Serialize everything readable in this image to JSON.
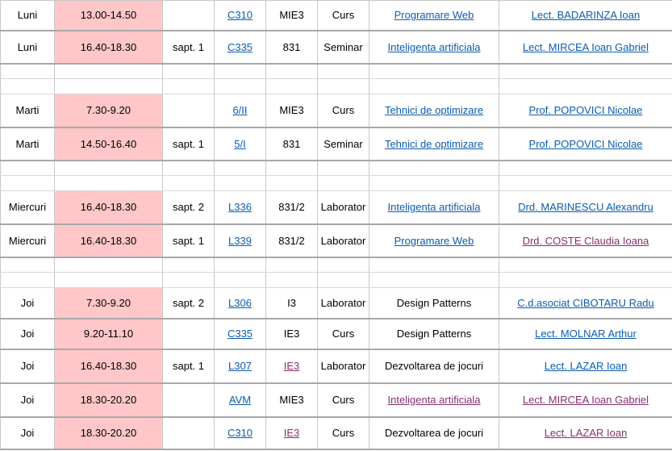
{
  "colors": {
    "time_cell_bg": "#ffc7c7",
    "link": "#0b5cad",
    "visited_link": "#86306e",
    "grid": "#c8c8c8"
  },
  "rows": [
    {
      "day": "Luni",
      "time": "13.00-14.50",
      "week": "",
      "room": "C310",
      "group": "MIE3",
      "type": "Curs",
      "subject": "Programare Web",
      "teacher": "Lect. BADARINZA Ioan"
    },
    {
      "day": "Luni",
      "time": "16.40-18.30",
      "week": "sapt. 1",
      "room": "C335",
      "group": "831",
      "type": "Seminar",
      "subject": "Inteligenta artificiala",
      "teacher": "Lect. MIRCEA Ioan Gabriel"
    },
    {
      "day": "Marti",
      "time": "7.30-9.20",
      "week": "",
      "room": "6/II",
      "group": "MIE3",
      "type": "Curs",
      "subject": "Tehnici de optimizare",
      "teacher": "Prof. POPOVICI Nicolae"
    },
    {
      "day": "Marti",
      "time": "14.50-16.40",
      "week": "sapt. 1",
      "room": "5/I",
      "group": "831",
      "type": "Seminar",
      "subject": "Tehnici de optimizare",
      "teacher": "Prof. POPOVICI Nicolae"
    },
    {
      "day": "Miercuri",
      "time": "16.40-18.30",
      "week": "sapt. 2",
      "room": "L336",
      "group": "831/2",
      "type": "Laborator",
      "subject": "Inteligenta artificiala",
      "teacher": "Drd. MARINESCU Alexandru"
    },
    {
      "day": "Miercuri",
      "time": "16.40-18.30",
      "week": "sapt. 1",
      "room": "L339",
      "group": "831/2",
      "type": "Laborator",
      "subject": "Programare Web",
      "teacher": "Drd. COSTE Claudia Ioana"
    },
    {
      "day": "Joi",
      "time": "7.30-9.20",
      "week": "sapt. 2",
      "room": "L306",
      "group": "I3",
      "type": "Laborator",
      "subject": "Design Patterns",
      "teacher": "C.d.asociat CIBOTARU Radu"
    },
    {
      "day": "Joi",
      "time": "9.20-11.10",
      "week": "",
      "room": "C335",
      "group": "IE3",
      "type": "Curs",
      "subject": "Design Patterns",
      "teacher": "Lect. MOLNAR Arthur"
    },
    {
      "day": "Joi",
      "time": "16.40-18.30",
      "week": "sapt. 1",
      "room": "L307",
      "group": "IE3",
      "type": "Laborator",
      "subject": "Dezvoltarea de jocuri",
      "teacher": "Lect. LAZAR Ioan"
    },
    {
      "day": "Joi",
      "time": "18.30-20.20",
      "week": "",
      "room": "AVM",
      "group": "MIE3",
      "type": "Curs",
      "subject": "Inteligenta artificiala",
      "teacher": "Lect. MIRCEA Ioan Gabriel"
    },
    {
      "day": "Joi",
      "time": "18.30-20.20",
      "week": "",
      "room": "C310",
      "group": "IE3",
      "type": "Curs",
      "subject": "Dezvoltarea de jocuri",
      "teacher": "Lect. LAZAR Ioan"
    }
  ]
}
